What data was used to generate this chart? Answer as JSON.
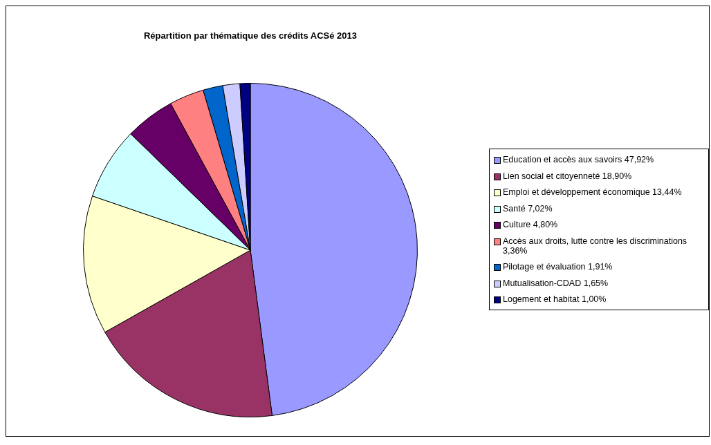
{
  "chart_data": {
    "type": "pie",
    "title": "Répartition par thématique des crédits ACSé 2013",
    "categories": [
      "Education et accès aux savoirs",
      "Lien social et citoyenneté",
      "Emploi et développement économique",
      "Santé",
      "Culture",
      "Accès aux droits, lutte contre les discriminations",
      "Pilotage et évaluation",
      "Mutualisation-CDAD",
      "Logement et habitat"
    ],
    "values": [
      47.92,
      18.9,
      13.44,
      7.02,
      4.8,
      3.36,
      1.91,
      1.65,
      1.0
    ],
    "value_labels": [
      "47,92%",
      "18,90%",
      "13,44%",
      "7,02%",
      "4,80%",
      "3,36%",
      "1,91%",
      "1,65%",
      "1,00%"
    ],
    "colors": [
      "#9999ff",
      "#993366",
      "#ffffcc",
      "#ccffff",
      "#660066",
      "#ff8080",
      "#0066cc",
      "#ccccff",
      "#000080"
    ],
    "legend": "right"
  }
}
